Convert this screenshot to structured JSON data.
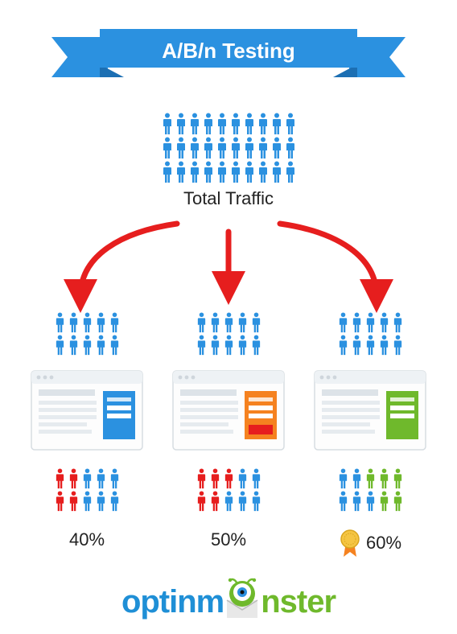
{
  "banner": {
    "title": "A/B/n Testing",
    "bg_color": "#2b91e0",
    "fold_color": "#1c6fb3",
    "text_color": "#ffffff",
    "fontsize": 26
  },
  "total_traffic": {
    "label": "Total Traffic",
    "label_fontsize": 22,
    "rows": 3,
    "per_row": 10,
    "person_color": "#2b91e0"
  },
  "arrows": {
    "color": "#e61e1e",
    "stroke_width": 7
  },
  "variants": [
    {
      "id": "A",
      "split_people": {
        "rows": 2,
        "per_row": 5,
        "color": "#2b91e0"
      },
      "browser": {
        "accent": "#2b91e0",
        "cta": "#2b91e0"
      },
      "result_people": [
        [
          "#e61e1e",
          "#e61e1e",
          "#2b91e0",
          "#2b91e0",
          "#2b91e0"
        ],
        [
          "#e61e1e",
          "#e61e1e",
          "#2b91e0",
          "#2b91e0",
          "#2b91e0"
        ]
      ],
      "percent": "40%",
      "winner": false
    },
    {
      "id": "B",
      "split_people": {
        "rows": 2,
        "per_row": 5,
        "color": "#2b91e0"
      },
      "browser": {
        "accent": "#f58220",
        "cta": "#e61e1e"
      },
      "result_people": [
        [
          "#e61e1e",
          "#e61e1e",
          "#e61e1e",
          "#2b91e0",
          "#2b91e0"
        ],
        [
          "#e61e1e",
          "#e61e1e",
          "#2b91e0",
          "#2b91e0",
          "#2b91e0"
        ]
      ],
      "percent": "50%",
      "winner": false
    },
    {
      "id": "C",
      "split_people": {
        "rows": 2,
        "per_row": 5,
        "color": "#2b91e0"
      },
      "browser": {
        "accent": "#6fb92c",
        "cta": "#6fb92c"
      },
      "result_people": [
        [
          "#2b91e0",
          "#2b91e0",
          "#6fb92c",
          "#6fb92c",
          "#6fb92c"
        ],
        [
          "#2b91e0",
          "#2b91e0",
          "#2b91e0",
          "#6fb92c",
          "#6fb92c"
        ]
      ],
      "percent": "60%",
      "winner": true
    }
  ],
  "badge": {
    "ribbon_color": "#f58220",
    "medal_color": "#f5c542"
  },
  "logo": {
    "left": "optinm",
    "right": "nster",
    "left_color": "#1f8fd6",
    "right_color": "#6fb92c",
    "eye_green": "#6fb92c",
    "eye_iris": "#2b91e0",
    "envelope": "#e8e8e8"
  },
  "background_color": "#ffffff"
}
